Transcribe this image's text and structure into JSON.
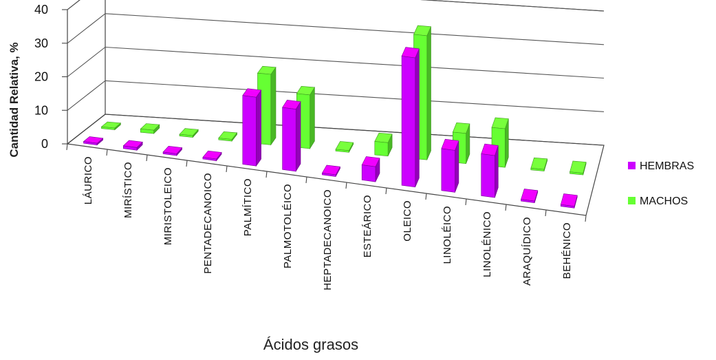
{
  "chart_data": {
    "type": "bar",
    "style": "3d-clustered-column",
    "xlabel": "Ácidos grasos",
    "ylabel": "Cantidad Relativa, %",
    "ylim": [
      0,
      40
    ],
    "yticks": [
      "0",
      "10",
      "20",
      "30",
      "40"
    ],
    "grid": true,
    "legend_position": "right",
    "categories": [
      "LÁURICO",
      "MIRÍSTICO",
      "MIRISTOLEICO",
      "PENTADECANOICO",
      "PALMÍTICO",
      "PALMOTOLÉICO",
      "HEPTADECANOICO",
      "ESTEÁRICO",
      "OLEICO",
      "LINOLÉICO",
      "LINOLÉNICO",
      "ARAQUÍDICO",
      "BEHÉNICO"
    ],
    "series": [
      {
        "name": "HEMBRAS",
        "color": "#CC00FF",
        "values": [
          0.1,
          0.8,
          0.4,
          0.3,
          20.5,
          18.5,
          0.5,
          4.5,
          38.5,
          12.5,
          12.5,
          0.3,
          0.5
        ]
      },
      {
        "name": "MACHOS",
        "color": "#66FF33",
        "values": [
          0.2,
          1.0,
          0.2,
          0.3,
          21.0,
          16.0,
          0.5,
          4.0,
          37.0,
          9.0,
          11.5,
          0.2,
          0.3
        ]
      }
    ]
  }
}
